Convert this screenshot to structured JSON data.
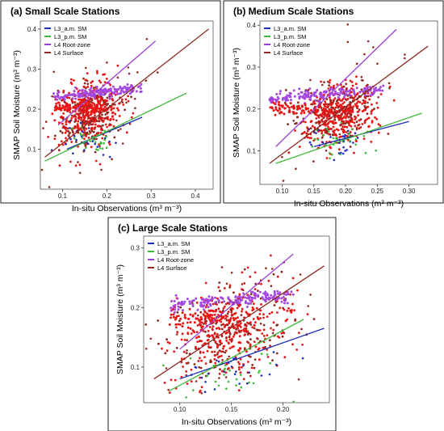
{
  "panels": [
    {
      "title": "(a)  Small Scale Stations",
      "xlabel": "In-situ Observations",
      "ylabel": "SMAP Soil Moisture",
      "unit": "(m³ m⁻³)",
      "xlim": [
        0.05,
        0.44
      ],
      "ylim": [
        0.0,
        0.42
      ],
      "xticks": [
        0.1,
        0.2,
        0.3,
        0.4
      ],
      "yticks": [
        0.1,
        0.2,
        0.3,
        0.4
      ],
      "cluster": {
        "xc": 0.16,
        "xs": 0.035,
        "yc": 0.19,
        "ys": 0.04,
        "slope": 0.25
      },
      "plateau": {
        "x0": 0.08,
        "x1": 0.28,
        "y": 0.23
      },
      "lines": [
        {
          "name": "L3_a.m. SM",
          "color": "#1f2db8",
          "x": [
            0.11,
            0.28
          ],
          "y": [
            0.1,
            0.18
          ]
        },
        {
          "name": "L3_p.m. SM",
          "color": "#3cb83a",
          "x": [
            0.06,
            0.38
          ],
          "y": [
            0.07,
            0.24
          ]
        },
        {
          "name": "L4 Root-zone",
          "color": "#9b3fd6",
          "x": [
            0.09,
            0.31
          ],
          "y": [
            0.16,
            0.37
          ]
        },
        {
          "name": "L4 Surface",
          "color": "#8b2a22",
          "x": [
            0.06,
            0.43
          ],
          "y": [
            0.08,
            0.4
          ]
        }
      ]
    },
    {
      "title": "(b)  Medium Scale Stations",
      "xlabel": "In-situ Observations",
      "ylabel": "SMAP Soil Moisture",
      "unit": "(m³ m⁻³)",
      "xlim": [
        0.065,
        0.345
      ],
      "ylim": [
        0.02,
        0.41
      ],
      "xticks": [
        0.1,
        0.15,
        0.2,
        0.25,
        0.3
      ],
      "xtick_labels": [
        "0.10",
        "0.15",
        "0.20",
        "0.25",
        "0.30"
      ],
      "yticks": [
        0.1,
        0.2,
        0.3,
        0.4
      ],
      "cluster": {
        "xc": 0.19,
        "xs": 0.03,
        "yc": 0.19,
        "ys": 0.035,
        "slope": 0.3
      },
      "plateau": {
        "x0": 0.08,
        "x1": 0.26,
        "y": 0.225
      },
      "lines": [
        {
          "name": "L3_a.m. SM",
          "color": "#1f2db8",
          "x": [
            0.15,
            0.3
          ],
          "y": [
            0.11,
            0.17
          ]
        },
        {
          "name": "L3_p.m. SM",
          "color": "#3cb83a",
          "x": [
            0.09,
            0.32
          ],
          "y": [
            0.07,
            0.19
          ]
        },
        {
          "name": "L4 Root-zone",
          "color": "#9b3fd6",
          "x": [
            0.09,
            0.28
          ],
          "y": [
            0.11,
            0.39
          ]
        },
        {
          "name": "L4 Surface",
          "color": "#8b2a22",
          "x": [
            0.08,
            0.33
          ],
          "y": [
            0.07,
            0.35
          ]
        }
      ]
    },
    {
      "title": "(c)  Large Scale Stations",
      "xlabel": "In-situ Observations",
      "ylabel": "SMAP Soil Moisture",
      "unit": "(m³ m⁻³)",
      "xlim": [
        0.065,
        0.245
      ],
      "ylim": [
        0.04,
        0.32
      ],
      "xticks": [
        0.1,
        0.15,
        0.2
      ],
      "xtick_labels": [
        "0.10",
        "0.15",
        "0.20"
      ],
      "yticks": [
        0.1,
        0.2,
        0.3
      ],
      "cluster": {
        "xc": 0.15,
        "xs": 0.03,
        "yc": 0.16,
        "ys": 0.035,
        "slope": 0.3
      },
      "plateau": {
        "x0": 0.09,
        "x1": 0.21,
        "y": 0.205
      },
      "lines": [
        {
          "name": "L3_a.m. SM",
          "color": "#1f2db8",
          "x": [
            0.1,
            0.24
          ],
          "y": [
            0.08,
            0.165
          ]
        },
        {
          "name": "L3_p.m. SM",
          "color": "#3cb83a",
          "x": [
            0.09,
            0.22
          ],
          "y": [
            0.06,
            0.18
          ]
        },
        {
          "name": "L4 Root-zone",
          "color": "#9b3fd6",
          "x": [
            0.1,
            0.21
          ],
          "y": [
            0.13,
            0.29
          ]
        },
        {
          "name": "L4 Surface",
          "color": "#8b2a22",
          "x": [
            0.075,
            0.24
          ],
          "y": [
            0.08,
            0.27
          ]
        }
      ]
    }
  ],
  "colors": {
    "scatter_red": "#e81515",
    "scatter_brown": "#8b2a22",
    "scatter_purple": "#a347e0",
    "scatter_blue": "#1f2db8",
    "scatter_green": "#3cb83a"
  }
}
